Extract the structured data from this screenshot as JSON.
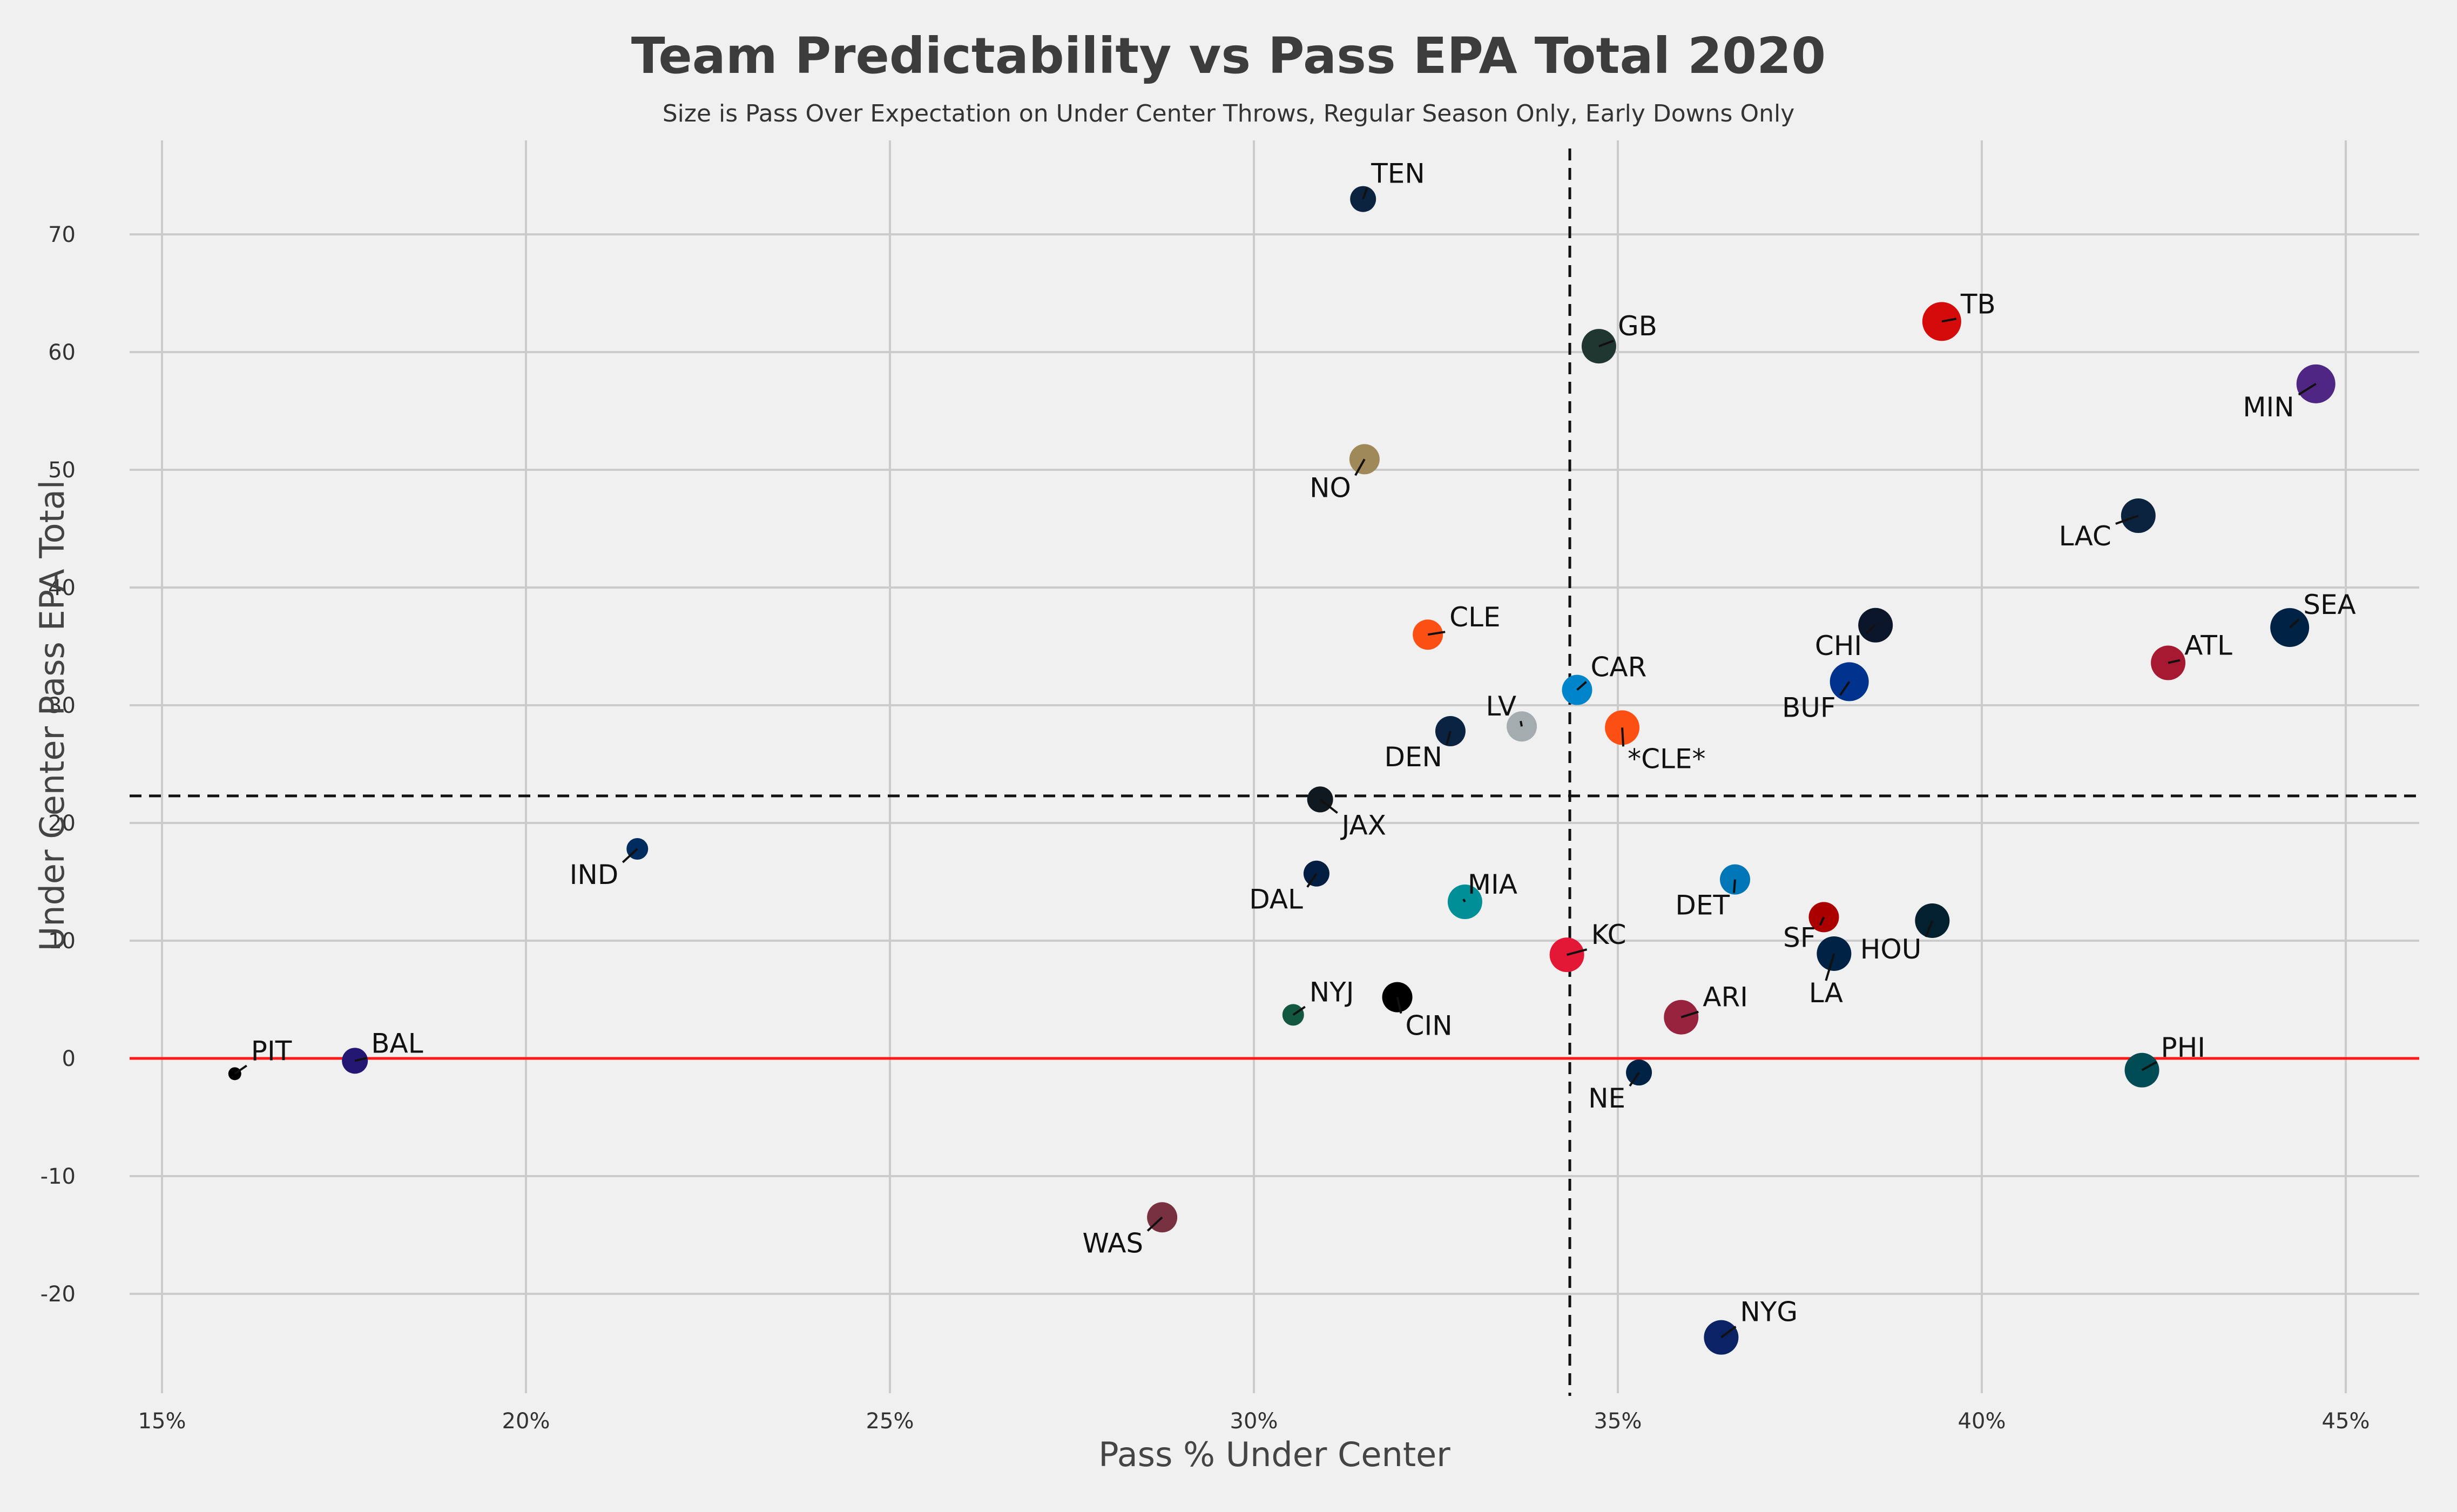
{
  "chart_data": {
    "type": "scatter",
    "title": "Team Predictability vs Pass EPA Total 2020",
    "subtitle": "Size is Pass Over Expectation on Under Center Throws, Regular Season Only, Early Downs Only",
    "xlabel": "Pass % Under Center",
    "ylabel": "Under Center Pass EPA Total",
    "xlim": [
      0.145,
      0.455
    ],
    "ylim": [
      -28,
      78
    ],
    "x_ticks": [
      0.15,
      0.2,
      0.25,
      0.3,
      0.35,
      0.4,
      0.45
    ],
    "x_tick_labels": [
      "15%",
      "20%",
      "25%",
      "30%",
      "35%",
      "40%",
      "45%"
    ],
    "y_ticks": [
      -20,
      -10,
      0,
      10,
      20,
      30,
      40,
      50,
      60,
      70
    ],
    "y_tick_labels": [
      "-20",
      "-10",
      "0",
      "10",
      "20",
      "30",
      "40",
      "50",
      "60",
      "70"
    ],
    "grid": true,
    "reference_lines": {
      "x_mean": 0.3434,
      "y_mean": 22.3,
      "y_zero": 0,
      "mean_line_color": "#111111",
      "zero_line_color": "#ff1a1a"
    },
    "points": [
      {
        "team": "TEN",
        "x": 0.315,
        "y": 73.0,
        "size": 4,
        "color": "#0c2340"
      },
      {
        "team": "GB",
        "x": 0.3474,
        "y": 60.5,
        "size": 6,
        "color": "#203731"
      },
      {
        "team": "TB",
        "x": 0.3945,
        "y": 62.6,
        "size": 7,
        "color": "#d50a0a"
      },
      {
        "team": "MIN",
        "x": 0.4459,
        "y": 57.3,
        "size": 7,
        "color": "#4f2683"
      },
      {
        "team": "NO",
        "x": 0.3152,
        "y": 50.9,
        "size": 5,
        "color": "#9f8958"
      },
      {
        "team": "LAC",
        "x": 0.4215,
        "y": 46.1,
        "size": 6,
        "color": "#0c2340"
      },
      {
        "team": "CLE",
        "x": 0.3239,
        "y": 36.0,
        "size": 5,
        "color": "#fb4f14"
      },
      {
        "team": "CHI",
        "x": 0.3854,
        "y": 36.8,
        "size": 6,
        "color": "#0b162a"
      },
      {
        "team": "SEA",
        "x": 0.4423,
        "y": 36.6,
        "size": 7,
        "color": "#002244"
      },
      {
        "team": "ATL",
        "x": 0.4256,
        "y": 33.6,
        "size": 6,
        "color": "#a71930"
      },
      {
        "team": "CAR",
        "x": 0.3444,
        "y": 31.3,
        "size": 5,
        "color": "#0085ca"
      },
      {
        "team": "BUF",
        "x": 0.3818,
        "y": 32.0,
        "size": 7,
        "color": "#00338d"
      },
      {
        "team": "LV",
        "x": 0.3368,
        "y": 28.2,
        "size": 5,
        "color": "#a5acaf"
      },
      {
        "team": "DEN",
        "x": 0.327,
        "y": 27.8,
        "size": 5,
        "color": "#0a2343"
      },
      {
        "team": "*CLE*",
        "x": 0.3506,
        "y": 28.1,
        "size": 6,
        "color": "#fb4f14"
      },
      {
        "team": "JAX",
        "x": 0.3091,
        "y": 22.0,
        "size": 4,
        "color": "#101820"
      },
      {
        "team": "IND",
        "x": 0.2153,
        "y": 17.8,
        "size": 3,
        "color": "#002c5f"
      },
      {
        "team": "DAL",
        "x": 0.3086,
        "y": 15.7,
        "size": 4,
        "color": "#041e42"
      },
      {
        "team": "MIA",
        "x": 0.329,
        "y": 13.3,
        "size": 6,
        "color": "#008e97"
      },
      {
        "team": "DET",
        "x": 0.3661,
        "y": 15.2,
        "size": 5,
        "color": "#0076b6"
      },
      {
        "team": "SF",
        "x": 0.3783,
        "y": 12.0,
        "size": 5,
        "color": "#aa0000"
      },
      {
        "team": "HOU",
        "x": 0.3932,
        "y": 11.7,
        "size": 6,
        "color": "#03202f"
      },
      {
        "team": "LA",
        "x": 0.3797,
        "y": 8.9,
        "size": 6,
        "color": "#002244"
      },
      {
        "team": "KC",
        "x": 0.343,
        "y": 8.8,
        "size": 6,
        "color": "#e31837"
      },
      {
        "team": "NYJ",
        "x": 0.3054,
        "y": 3.7,
        "size": 3,
        "color": "#125740"
      },
      {
        "team": "CIN",
        "x": 0.3197,
        "y": 5.2,
        "size": 5,
        "color": "#000000"
      },
      {
        "team": "ARI",
        "x": 0.3587,
        "y": 3.5,
        "size": 6,
        "color": "#97233f"
      },
      {
        "team": "PIT",
        "x": 0.16,
        "y": -1.3,
        "size": 1,
        "color": "#000000"
      },
      {
        "team": "BAL",
        "x": 0.1765,
        "y": -0.2,
        "size": 4,
        "color": "#241773"
      },
      {
        "team": "NE",
        "x": 0.3529,
        "y": -1.2,
        "size": 4,
        "color": "#002244"
      },
      {
        "team": "PHI",
        "x": 0.422,
        "y": -1.0,
        "size": 6,
        "color": "#004c54"
      },
      {
        "team": "WAS",
        "x": 0.2874,
        "y": -13.5,
        "size": 5,
        "color": "#773141"
      },
      {
        "team": "NYG",
        "x": 0.3642,
        "y": -23.7,
        "size": 6,
        "color": "#0b2265"
      }
    ]
  }
}
